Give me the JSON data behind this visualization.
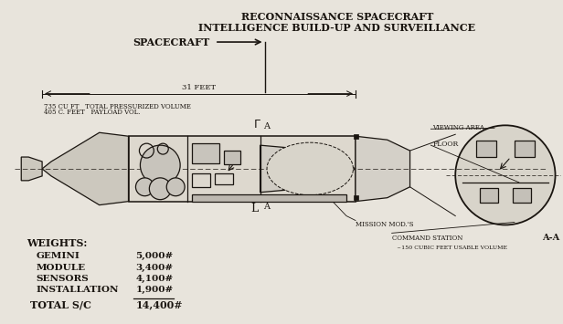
{
  "title1": "RECONNAISSANCE SPACECRAFT",
  "title2": "INTELLIGENCE BUILD-UP AND SURVEILLANCE",
  "spacecraft_label": "SPACECRAFT",
  "bg_color": "#e8e4dc",
  "line_color": "#1a1510",
  "weights_label": "WEIGHTS:",
  "weight_items": [
    [
      "GEMINI",
      "5,000#"
    ],
    [
      "MODULE",
      "3,400#"
    ],
    [
      "SENSORS",
      "4,100#"
    ],
    [
      "INSTALLATION",
      "1,900#"
    ]
  ],
  "total_label": "TOTAL S/C",
  "total_value": "14,400#",
  "dim_label": "31 FEET",
  "note1": "735 CU FT   TOTAL PRESSURIZED VOLUME",
  "note2": "405 C. FEET   PAYLOAD VOL.",
  "viewing_area": "VIEWING AREA",
  "floor": "FLOOR",
  "aa_label": "A-A",
  "mission_module": "MISSION MOD.'S",
  "command_station": "COMMAND STATION",
  "note3": "~150 CUBIC FEET USABLE VOLUME"
}
